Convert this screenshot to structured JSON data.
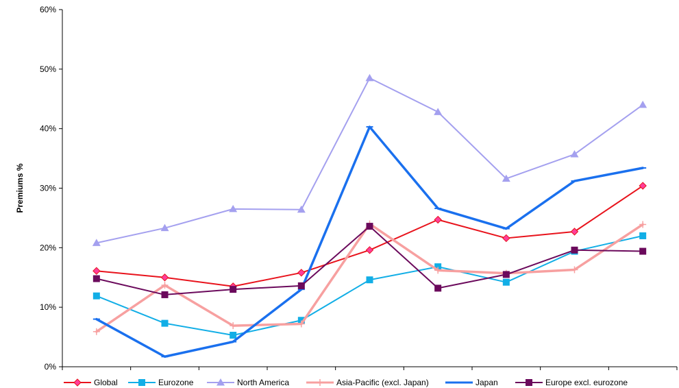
{
  "chart_data": {
    "type": "line",
    "title": "",
    "xlabel": "",
    "ylabel": "Premiums %",
    "ylim": [
      0,
      60
    ],
    "y_ticks": [
      "0%",
      "10%",
      "20%",
      "30%",
      "40%",
      "50%",
      "60%"
    ],
    "y_tick_values": [
      0,
      10,
      20,
      30,
      40,
      50,
      60
    ],
    "categories": [
      "",
      "",
      "",
      "",
      "",
      "",
      "",
      "",
      ""
    ],
    "grid": false,
    "legend_position": "bottom",
    "series": [
      {
        "name": "Global",
        "color": "#e8131c",
        "marker": "diamond",
        "marker_fill": "#ff3d9a",
        "width": 2,
        "values": [
          16.1,
          15.0,
          13.5,
          15.8,
          19.6,
          24.7,
          21.6,
          22.7,
          30.4
        ]
      },
      {
        "name": "Eurozone",
        "color": "#12aee6",
        "marker": "square",
        "marker_fill": "#12aee6",
        "width": 2,
        "values": [
          11.9,
          7.3,
          5.3,
          7.8,
          14.6,
          16.8,
          14.2,
          19.4,
          22.0
        ]
      },
      {
        "name": "North America",
        "color": "#a4a0ef",
        "marker": "triangle",
        "marker_fill": "#a4a0ef",
        "width": 2,
        "values": [
          20.8,
          23.3,
          26.5,
          26.4,
          48.5,
          42.8,
          31.6,
          35.7,
          44.0
        ]
      },
      {
        "name": "Asia-Pacific (excl. Japan)",
        "color": "#f7a0a0",
        "marker": "plus",
        "marker_fill": "#f7a0a0",
        "width": 3.5,
        "values": [
          5.9,
          13.7,
          6.9,
          7.2,
          24.0,
          16.2,
          15.7,
          16.3,
          23.9
        ]
      },
      {
        "name": "Japan",
        "color": "#1a70ee",
        "marker": "dash",
        "marker_fill": "#1a70ee",
        "width": 3.5,
        "values": [
          8.0,
          1.7,
          4.2,
          13.0,
          40.3,
          26.6,
          23.2,
          31.2,
          33.4
        ]
      },
      {
        "name": "Europe excl. eurozone",
        "color": "#6b0a5c",
        "marker": "square",
        "marker_fill": "#6b0a5c",
        "width": 2,
        "values": [
          14.8,
          12.1,
          13.0,
          13.6,
          23.6,
          13.2,
          15.5,
          19.6,
          19.4
        ]
      }
    ]
  }
}
